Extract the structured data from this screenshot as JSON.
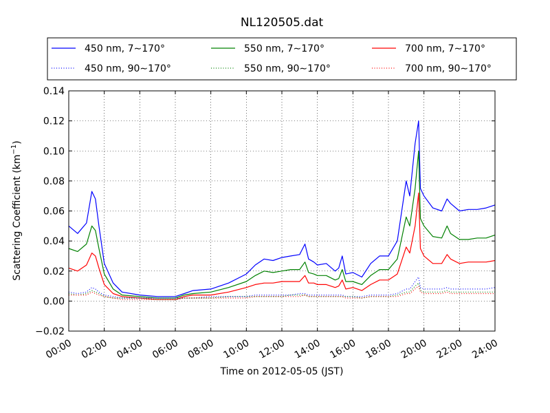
{
  "chart_data": {
    "type": "line",
    "title": "NL120505.dat",
    "xlabel": "Time on 2012-05-05 (JST)",
    "ylabel": "Scattering Coefficient (km",
    "ylabel_sup": "−1",
    "ylabel_end": ")",
    "x_tick_labels": [
      "00:00",
      "02:00",
      "04:00",
      "06:00",
      "08:00",
      "10:00",
      "12:00",
      "14:00",
      "16:00",
      "18:00",
      "20:00",
      "22:00",
      "24:00"
    ],
    "y_tick_labels": [
      "−0.02",
      "0.00",
      "0.02",
      "0.04",
      "0.06",
      "0.08",
      "0.10",
      "0.12",
      "0.14"
    ],
    "xlim": [
      0,
      24
    ],
    "ylim": [
      -0.02,
      0.14
    ],
    "x_ticks": [
      0,
      2,
      4,
      6,
      8,
      10,
      12,
      14,
      16,
      18,
      20,
      22,
      24
    ],
    "y_ticks": [
      -0.02,
      0,
      0.02,
      0.04,
      0.06,
      0.08,
      0.1,
      0.12,
      0.14
    ],
    "grid": true,
    "legend_position": "top",
    "x": [
      0,
      0.5,
      1,
      1.3,
      1.5,
      1.7,
      2,
      2.5,
      3,
      4,
      5,
      6,
      6.5,
      7,
      8,
      9,
      10,
      10.5,
      11,
      11.5,
      12,
      12.5,
      13,
      13.3,
      13.5,
      13.8,
      14,
      14.5,
      15,
      15.2,
      15.4,
      15.6,
      16,
      16.5,
      17,
      17.5,
      18,
      18.5,
      19,
      19.2,
      19.5,
      19.7,
      19.8,
      20,
      20.5,
      21,
      21.3,
      21.5,
      22,
      22.5,
      23,
      23.5,
      24
    ],
    "series": [
      {
        "name": "450 nm, 7∼170°",
        "color": "#0000ff",
        "dash": "solid",
        "values": [
          0.05,
          0.045,
          0.052,
          0.073,
          0.068,
          0.05,
          0.025,
          0.012,
          0.006,
          0.004,
          0.003,
          0.003,
          0.005,
          0.007,
          0.008,
          0.012,
          0.018,
          0.024,
          0.028,
          0.027,
          0.029,
          0.03,
          0.031,
          0.038,
          0.028,
          0.026,
          0.024,
          0.025,
          0.02,
          0.022,
          0.03,
          0.018,
          0.019,
          0.016,
          0.025,
          0.03,
          0.03,
          0.04,
          0.08,
          0.07,
          0.105,
          0.12,
          0.075,
          0.07,
          0.062,
          0.06,
          0.068,
          0.065,
          0.06,
          0.061,
          0.061,
          0.062,
          0.064
        ]
      },
      {
        "name": "550 nm, 7∼170°",
        "color": "#008000",
        "dash": "solid",
        "values": [
          0.035,
          0.033,
          0.038,
          0.05,
          0.047,
          0.035,
          0.018,
          0.008,
          0.004,
          0.003,
          0.002,
          0.002,
          0.004,
          0.005,
          0.006,
          0.009,
          0.013,
          0.017,
          0.02,
          0.019,
          0.02,
          0.021,
          0.021,
          0.026,
          0.019,
          0.018,
          0.017,
          0.017,
          0.014,
          0.015,
          0.021,
          0.013,
          0.013,
          0.011,
          0.017,
          0.021,
          0.021,
          0.028,
          0.056,
          0.05,
          0.075,
          0.1,
          0.055,
          0.05,
          0.043,
          0.042,
          0.05,
          0.045,
          0.041,
          0.041,
          0.042,
          0.042,
          0.044
        ]
      },
      {
        "name": "700 nm, 7∼170°",
        "color": "#ff0000",
        "dash": "solid",
        "values": [
          0.022,
          0.02,
          0.024,
          0.032,
          0.03,
          0.022,
          0.011,
          0.005,
          0.003,
          0.002,
          0.001,
          0.001,
          0.003,
          0.004,
          0.004,
          0.006,
          0.009,
          0.011,
          0.012,
          0.012,
          0.013,
          0.013,
          0.013,
          0.017,
          0.012,
          0.012,
          0.011,
          0.011,
          0.009,
          0.01,
          0.014,
          0.008,
          0.009,
          0.007,
          0.011,
          0.014,
          0.014,
          0.018,
          0.036,
          0.032,
          0.05,
          0.072,
          0.035,
          0.03,
          0.025,
          0.025,
          0.031,
          0.028,
          0.025,
          0.026,
          0.026,
          0.026,
          0.027
        ]
      },
      {
        "name": "450 nm, 90∼170°",
        "color": "#0000ff",
        "dash": "dotted",
        "values": [
          0.006,
          0.005,
          0.006,
          0.009,
          0.008,
          0.006,
          0.004,
          0.003,
          0.002,
          0.002,
          0.002,
          0.002,
          0.002,
          0.002,
          0.003,
          0.003,
          0.003,
          0.004,
          0.004,
          0.004,
          0.004,
          0.004,
          0.005,
          0.005,
          0.004,
          0.004,
          0.004,
          0.004,
          0.004,
          0.004,
          0.004,
          0.003,
          0.003,
          0.003,
          0.004,
          0.004,
          0.004,
          0.005,
          0.008,
          0.008,
          0.013,
          0.016,
          0.009,
          0.008,
          0.008,
          0.008,
          0.009,
          0.008,
          0.008,
          0.008,
          0.008,
          0.008,
          0.009
        ]
      },
      {
        "name": "550 nm, 90∼170°",
        "color": "#008000",
        "dash": "dotted",
        "values": [
          0.005,
          0.004,
          0.005,
          0.007,
          0.006,
          0.005,
          0.003,
          0.002,
          0.002,
          0.002,
          0.001,
          0.001,
          0.002,
          0.002,
          0.002,
          0.003,
          0.003,
          0.003,
          0.003,
          0.003,
          0.003,
          0.004,
          0.004,
          0.004,
          0.003,
          0.003,
          0.003,
          0.003,
          0.003,
          0.003,
          0.003,
          0.003,
          0.003,
          0.002,
          0.003,
          0.003,
          0.003,
          0.004,
          0.006,
          0.006,
          0.01,
          0.012,
          0.007,
          0.006,
          0.006,
          0.006,
          0.007,
          0.006,
          0.006,
          0.006,
          0.006,
          0.006,
          0.006
        ]
      },
      {
        "name": "700 nm, 90∼170°",
        "color": "#ff0000",
        "dash": "dotted",
        "values": [
          0.004,
          0.004,
          0.004,
          0.006,
          0.005,
          0.004,
          0.003,
          0.002,
          0.001,
          0.001,
          0.001,
          0.001,
          0.002,
          0.002,
          0.002,
          0.002,
          0.002,
          0.003,
          0.003,
          0.003,
          0.003,
          0.003,
          0.003,
          0.004,
          0.003,
          0.003,
          0.003,
          0.003,
          0.003,
          0.003,
          0.003,
          0.002,
          0.002,
          0.002,
          0.003,
          0.003,
          0.003,
          0.003,
          0.005,
          0.005,
          0.008,
          0.01,
          0.006,
          0.005,
          0.005,
          0.005,
          0.006,
          0.005,
          0.005,
          0.005,
          0.005,
          0.005,
          0.005
        ]
      }
    ]
  }
}
